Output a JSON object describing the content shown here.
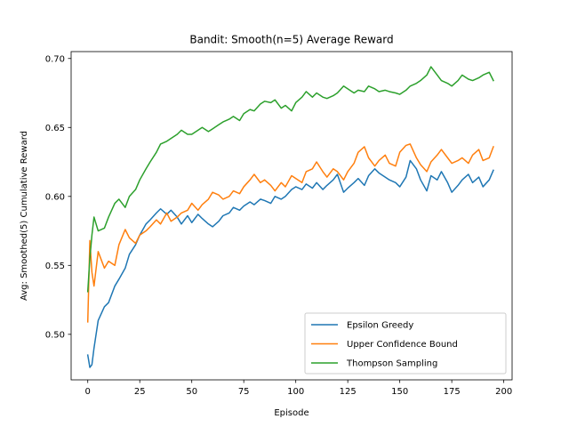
{
  "chart_data": {
    "type": "line",
    "title": "Bandit: Smooth(n=5) Average Reward",
    "xlabel": "Episode",
    "ylabel": "Avg: Smoothed(5) Cumulative Reward",
    "xlim": [
      -8,
      204
    ],
    "ylim": [
      0.467,
      0.705
    ],
    "xticks": [
      0,
      25,
      50,
      75,
      100,
      125,
      150,
      175,
      200
    ],
    "xtick_labels": [
      "0",
      "25",
      "50",
      "75",
      "100",
      "125",
      "150",
      "175",
      "200"
    ],
    "yticks": [
      0.5,
      0.55,
      0.6,
      0.65,
      0.7
    ],
    "ytick_labels": [
      "0.50",
      "0.55",
      "0.60",
      "0.65",
      "0.70"
    ],
    "grid": false,
    "legend_position": "lower-right",
    "series": [
      {
        "name": "Epsilon Greedy",
        "color": "#1f77b4",
        "x": [
          0,
          1,
          2,
          3,
          5,
          8,
          10,
          13,
          15,
          18,
          20,
          23,
          25,
          28,
          30,
          33,
          35,
          38,
          40,
          43,
          45,
          48,
          50,
          53,
          55,
          58,
          60,
          63,
          65,
          68,
          70,
          73,
          75,
          78,
          80,
          83,
          85,
          88,
          90,
          93,
          95,
          98,
          100,
          103,
          105,
          108,
          110,
          113,
          115,
          118,
          120,
          123,
          125,
          128,
          130,
          133,
          135,
          138,
          140,
          143,
          145,
          148,
          150,
          153,
          155,
          158,
          160,
          163,
          165,
          168,
          170,
          173,
          175,
          178,
          180,
          183,
          185,
          188,
          190,
          193,
          195
        ],
        "y": [
          0.485,
          0.476,
          0.478,
          0.49,
          0.51,
          0.52,
          0.523,
          0.535,
          0.54,
          0.548,
          0.558,
          0.565,
          0.572,
          0.58,
          0.583,
          0.588,
          0.591,
          0.587,
          0.59,
          0.585,
          0.58,
          0.586,
          0.581,
          0.587,
          0.584,
          0.58,
          0.578,
          0.582,
          0.586,
          0.588,
          0.592,
          0.59,
          0.593,
          0.596,
          0.594,
          0.598,
          0.597,
          0.595,
          0.6,
          0.598,
          0.6,
          0.605,
          0.607,
          0.605,
          0.609,
          0.606,
          0.61,
          0.605,
          0.608,
          0.612,
          0.616,
          0.603,
          0.606,
          0.61,
          0.613,
          0.608,
          0.615,
          0.62,
          0.617,
          0.614,
          0.612,
          0.61,
          0.607,
          0.614,
          0.626,
          0.62,
          0.612,
          0.604,
          0.615,
          0.612,
          0.618,
          0.61,
          0.603,
          0.608,
          0.612,
          0.616,
          0.61,
          0.614,
          0.607,
          0.612,
          0.619
        ]
      },
      {
        "name": "Upper Confidence Bound",
        "color": "#ff7f0e",
        "x": [
          0,
          1,
          2,
          3,
          5,
          8,
          10,
          13,
          15,
          18,
          20,
          23,
          25,
          28,
          30,
          33,
          35,
          38,
          40,
          43,
          45,
          48,
          50,
          53,
          55,
          58,
          60,
          63,
          65,
          68,
          70,
          73,
          75,
          78,
          80,
          83,
          85,
          88,
          90,
          93,
          95,
          98,
          100,
          103,
          105,
          108,
          110,
          113,
          115,
          118,
          120,
          123,
          125,
          128,
          130,
          133,
          135,
          138,
          140,
          143,
          145,
          148,
          150,
          153,
          155,
          158,
          160,
          163,
          165,
          168,
          170,
          173,
          175,
          178,
          180,
          183,
          185,
          188,
          190,
          193,
          195
        ],
        "y": [
          0.509,
          0.568,
          0.545,
          0.535,
          0.56,
          0.548,
          0.553,
          0.55,
          0.565,
          0.576,
          0.57,
          0.566,
          0.572,
          0.575,
          0.578,
          0.583,
          0.58,
          0.588,
          0.582,
          0.585,
          0.588,
          0.59,
          0.595,
          0.59,
          0.594,
          0.598,
          0.603,
          0.601,
          0.598,
          0.6,
          0.604,
          0.602,
          0.607,
          0.612,
          0.616,
          0.61,
          0.612,
          0.608,
          0.604,
          0.61,
          0.607,
          0.615,
          0.613,
          0.61,
          0.618,
          0.62,
          0.625,
          0.618,
          0.614,
          0.62,
          0.618,
          0.612,
          0.618,
          0.624,
          0.632,
          0.636,
          0.628,
          0.622,
          0.626,
          0.63,
          0.624,
          0.622,
          0.632,
          0.637,
          0.638,
          0.628,
          0.623,
          0.618,
          0.625,
          0.63,
          0.634,
          0.628,
          0.624,
          0.626,
          0.628,
          0.624,
          0.63,
          0.634,
          0.626,
          0.628,
          0.636
        ]
      },
      {
        "name": "Thompson Sampling",
        "color": "#2ca02c",
        "x": [
          0,
          1,
          2,
          3,
          5,
          8,
          10,
          13,
          15,
          18,
          20,
          23,
          25,
          28,
          30,
          33,
          35,
          38,
          40,
          43,
          45,
          48,
          50,
          53,
          55,
          58,
          60,
          63,
          65,
          68,
          70,
          73,
          75,
          78,
          80,
          83,
          85,
          88,
          90,
          93,
          95,
          98,
          100,
          103,
          105,
          108,
          110,
          113,
          115,
          118,
          120,
          123,
          125,
          128,
          130,
          133,
          135,
          138,
          140,
          143,
          145,
          148,
          150,
          153,
          155,
          158,
          160,
          163,
          165,
          168,
          170,
          173,
          175,
          178,
          180,
          183,
          185,
          188,
          190,
          193,
          195
        ],
        "y": [
          0.531,
          0.555,
          0.572,
          0.585,
          0.575,
          0.577,
          0.585,
          0.595,
          0.598,
          0.592,
          0.6,
          0.605,
          0.612,
          0.62,
          0.625,
          0.632,
          0.638,
          0.64,
          0.642,
          0.645,
          0.648,
          0.645,
          0.645,
          0.648,
          0.65,
          0.647,
          0.649,
          0.652,
          0.654,
          0.656,
          0.658,
          0.655,
          0.66,
          0.663,
          0.662,
          0.667,
          0.669,
          0.668,
          0.67,
          0.664,
          0.666,
          0.662,
          0.668,
          0.672,
          0.676,
          0.672,
          0.675,
          0.672,
          0.671,
          0.673,
          0.675,
          0.68,
          0.678,
          0.675,
          0.677,
          0.676,
          0.68,
          0.678,
          0.676,
          0.677,
          0.676,
          0.675,
          0.674,
          0.677,
          0.68,
          0.682,
          0.684,
          0.688,
          0.694,
          0.688,
          0.684,
          0.682,
          0.68,
          0.684,
          0.688,
          0.685,
          0.684,
          0.686,
          0.688,
          0.69,
          0.684
        ]
      }
    ]
  }
}
